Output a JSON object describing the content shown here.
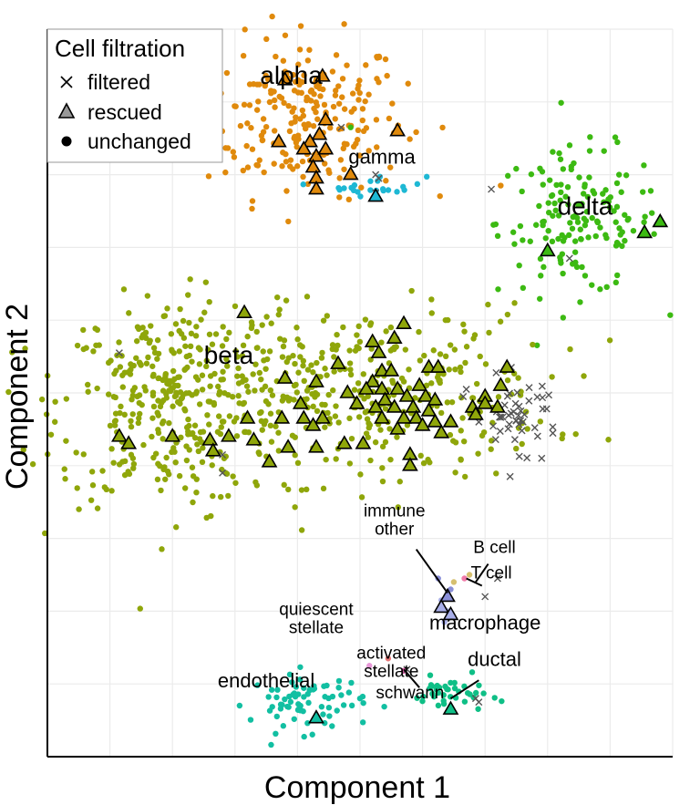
{
  "chart_data": {
    "type": "scatter",
    "xlabel": "Component 1",
    "ylabel": "Component 2",
    "xlim": [
      0,
      100
    ],
    "ylim": [
      0,
      100
    ],
    "grid": true,
    "legend_placement": "top-left",
    "legend": {
      "title": "Cell filtration",
      "entries": [
        {
          "label": "filtered",
          "shape": "cross"
        },
        {
          "label": "rescued",
          "shape": "triangle"
        },
        {
          "label": "unchanged",
          "shape": "circle"
        }
      ]
    },
    "colors": {
      "alpha": "#e08a0c",
      "gamma": "#1eb8d4",
      "delta": "#3cba12",
      "beta": "#8fa60a",
      "endothelial": "#12bfa2",
      "ductal": "#0fbf86",
      "immune": "#8a8fd8",
      "macrophage": "#a8aee8",
      "b_cell": "#d6c070",
      "t_cell": "#f07aa8",
      "activated_stellate": "#e87878",
      "quiescent_stellate": "#e898d8",
      "schwann": "#e85ab0",
      "filtered_cross": "#555555"
    },
    "clusters": [
      {
        "id": "alpha",
        "label": "alpha",
        "color_key": "alpha",
        "center": [
          41.0,
          88.0
        ],
        "spread": [
          8.0,
          5.5
        ],
        "n": 230
      },
      {
        "id": "gamma",
        "label": "gamma",
        "color_key": "gamma",
        "center": [
          52.5,
          78.5
        ],
        "spread": [
          4.0,
          0.7
        ],
        "n": 22
      },
      {
        "id": "delta",
        "label": "delta",
        "color_key": "delta",
        "center": [
          85.0,
          73.5
        ],
        "spread": [
          6.5,
          5.0
        ],
        "n": 150
      },
      {
        "id": "beta",
        "label": "beta",
        "color_key": "beta",
        "center": [
          20.0,
          48.5
        ],
        "spread": [
          9.0,
          7.0
        ],
        "n": 330
      },
      {
        "id": "beta2",
        "label": "",
        "color_key": "beta",
        "center": [
          48.0,
          50.0
        ],
        "spread": [
          16.0,
          6.0
        ],
        "n": 380
      },
      {
        "id": "endothelial",
        "label": "endothelial",
        "color_key": "endothelial",
        "center": [
          41.5,
          7.5
        ],
        "spread": [
          4.5,
          2.0
        ],
        "n": 75
      },
      {
        "id": "ductal",
        "label": "ductal",
        "color_key": "ductal",
        "center": [
          64.5,
          8.5
        ],
        "spread": [
          3.0,
          1.2
        ],
        "n": 38
      }
    ],
    "extra_points": [
      {
        "x": 62.5,
        "y": 24.5,
        "color_key": "immune"
      },
      {
        "x": 64.5,
        "y": 23.0,
        "color_key": "immune"
      },
      {
        "x": 63.0,
        "y": 21.5,
        "color_key": "macrophage"
      },
      {
        "x": 64.0,
        "y": 20.0,
        "color_key": "macrophage"
      },
      {
        "x": 63.5,
        "y": 18.5,
        "color_key": "macrophage"
      },
      {
        "x": 65.0,
        "y": 24.0,
        "color_key": "b_cell"
      },
      {
        "x": 67.5,
        "y": 25.0,
        "color_key": "b_cell"
      },
      {
        "x": 66.7,
        "y": 24.5,
        "color_key": "t_cell"
      },
      {
        "x": 51.5,
        "y": 12.5,
        "color_key": "quiescent_stellate"
      },
      {
        "x": 54.5,
        "y": 13.5,
        "color_key": "activated_stellate"
      },
      {
        "x": 57.0,
        "y": 11.8,
        "color_key": "schwann"
      },
      {
        "x": 72.5,
        "y": 78.5,
        "color_key": "alpha"
      },
      {
        "x": 76.0,
        "y": 71.0,
        "color_key": "delta"
      },
      {
        "x": 48.5,
        "y": 86.5,
        "color_key": "delta"
      }
    ],
    "rescued": [
      {
        "x": 44.0,
        "y": 93.5,
        "color_key": "alpha"
      },
      {
        "x": 44.5,
        "y": 87.5,
        "color_key": "alpha"
      },
      {
        "x": 43.5,
        "y": 85.5,
        "color_key": "alpha"
      },
      {
        "x": 42.0,
        "y": 84.5,
        "color_key": "alpha"
      },
      {
        "x": 41.0,
        "y": 83.5,
        "color_key": "alpha"
      },
      {
        "x": 43.0,
        "y": 82.5,
        "color_key": "alpha"
      },
      {
        "x": 44.5,
        "y": 83.5,
        "color_key": "alpha"
      },
      {
        "x": 42.5,
        "y": 81.0,
        "color_key": "alpha"
      },
      {
        "x": 43.0,
        "y": 79.5,
        "color_key": "alpha"
      },
      {
        "x": 43.0,
        "y": 78.0,
        "color_key": "alpha"
      },
      {
        "x": 37.0,
        "y": 84.5,
        "color_key": "alpha"
      },
      {
        "x": 38.0,
        "y": 93.0,
        "color_key": "alpha"
      },
      {
        "x": 48.5,
        "y": 80.0,
        "color_key": "alpha"
      },
      {
        "x": 56.0,
        "y": 86.0,
        "color_key": "alpha"
      },
      {
        "x": 52.5,
        "y": 77.0,
        "color_key": "gamma"
      },
      {
        "x": 98.0,
        "y": 73.5,
        "color_key": "delta"
      },
      {
        "x": 95.5,
        "y": 72.0,
        "color_key": "delta"
      },
      {
        "x": 80.0,
        "y": 69.5,
        "color_key": "delta"
      },
      {
        "x": 31.5,
        "y": 61.0,
        "color_key": "beta"
      },
      {
        "x": 57.0,
        "y": 59.5,
        "color_key": "beta"
      },
      {
        "x": 55.5,
        "y": 57.5,
        "color_key": "beta"
      },
      {
        "x": 52.0,
        "y": 57.0,
        "color_key": "beta"
      },
      {
        "x": 53.0,
        "y": 55.5,
        "color_key": "beta"
      },
      {
        "x": 46.5,
        "y": 54.0,
        "color_key": "beta"
      },
      {
        "x": 53.5,
        "y": 53.0,
        "color_key": "beta"
      },
      {
        "x": 55.0,
        "y": 53.0,
        "color_key": "beta"
      },
      {
        "x": 61.0,
        "y": 53.5,
        "color_key": "beta"
      },
      {
        "x": 62.5,
        "y": 53.5,
        "color_key": "beta"
      },
      {
        "x": 73.5,
        "y": 53.5,
        "color_key": "beta"
      },
      {
        "x": 38.0,
        "y": 52.0,
        "color_key": "beta"
      },
      {
        "x": 43.0,
        "y": 51.5,
        "color_key": "beta"
      },
      {
        "x": 52.0,
        "y": 51.5,
        "color_key": "beta"
      },
      {
        "x": 53.5,
        "y": 50.5,
        "color_key": "beta"
      },
      {
        "x": 56.0,
        "y": 50.5,
        "color_key": "beta"
      },
      {
        "x": 59.5,
        "y": 51.0,
        "color_key": "beta"
      },
      {
        "x": 72.5,
        "y": 51.0,
        "color_key": "beta"
      },
      {
        "x": 48.0,
        "y": 50.0,
        "color_key": "beta"
      },
      {
        "x": 51.0,
        "y": 50.5,
        "color_key": "beta"
      },
      {
        "x": 54.0,
        "y": 49.0,
        "color_key": "beta"
      },
      {
        "x": 57.5,
        "y": 49.5,
        "color_key": "beta"
      },
      {
        "x": 60.5,
        "y": 49.5,
        "color_key": "beta"
      },
      {
        "x": 62.0,
        "y": 49.0,
        "color_key": "beta"
      },
      {
        "x": 70.0,
        "y": 49.5,
        "color_key": "beta"
      },
      {
        "x": 40.5,
        "y": 48.5,
        "color_key": "beta"
      },
      {
        "x": 49.5,
        "y": 48.5,
        "color_key": "beta"
      },
      {
        "x": 52.5,
        "y": 48.0,
        "color_key": "beta"
      },
      {
        "x": 55.5,
        "y": 48.0,
        "color_key": "beta"
      },
      {
        "x": 58.5,
        "y": 48.0,
        "color_key": "beta"
      },
      {
        "x": 61.0,
        "y": 47.5,
        "color_key": "beta"
      },
      {
        "x": 68.0,
        "y": 48.0,
        "color_key": "beta"
      },
      {
        "x": 72.0,
        "y": 48.0,
        "color_key": "beta"
      },
      {
        "x": 32.0,
        "y": 46.5,
        "color_key": "beta"
      },
      {
        "x": 37.5,
        "y": 46.5,
        "color_key": "beta"
      },
      {
        "x": 41.0,
        "y": 46.5,
        "color_key": "beta"
      },
      {
        "x": 44.0,
        "y": 46.5,
        "color_key": "beta"
      },
      {
        "x": 53.5,
        "y": 46.5,
        "color_key": "beta"
      },
      {
        "x": 57.0,
        "y": 46.5,
        "color_key": "beta"
      },
      {
        "x": 59.0,
        "y": 46.5,
        "color_key": "beta"
      },
      {
        "x": 62.0,
        "y": 46.0,
        "color_key": "beta"
      },
      {
        "x": 64.5,
        "y": 46.0,
        "color_key": "beta"
      },
      {
        "x": 42.5,
        "y": 45.5,
        "color_key": "beta"
      },
      {
        "x": 56.0,
        "y": 45.0,
        "color_key": "beta"
      },
      {
        "x": 60.0,
        "y": 45.5,
        "color_key": "beta"
      },
      {
        "x": 63.0,
        "y": 44.5,
        "color_key": "beta"
      },
      {
        "x": 11.5,
        "y": 44.0,
        "color_key": "beta"
      },
      {
        "x": 13.0,
        "y": 43.0,
        "color_key": "beta"
      },
      {
        "x": 20.0,
        "y": 44.0,
        "color_key": "beta"
      },
      {
        "x": 26.0,
        "y": 43.5,
        "color_key": "beta"
      },
      {
        "x": 29.0,
        "y": 44.0,
        "color_key": "beta"
      },
      {
        "x": 33.0,
        "y": 43.5,
        "color_key": "beta"
      },
      {
        "x": 47.5,
        "y": 43.0,
        "color_key": "beta"
      },
      {
        "x": 50.5,
        "y": 43.0,
        "color_key": "beta"
      },
      {
        "x": 26.5,
        "y": 42.0,
        "color_key": "beta"
      },
      {
        "x": 38.5,
        "y": 42.5,
        "color_key": "beta"
      },
      {
        "x": 43.0,
        "y": 42.5,
        "color_key": "beta"
      },
      {
        "x": 58.0,
        "y": 41.5,
        "color_key": "beta"
      },
      {
        "x": 35.5,
        "y": 40.5,
        "color_key": "beta"
      },
      {
        "x": 58.0,
        "y": 40.0,
        "color_key": "beta"
      },
      {
        "x": 70.0,
        "y": 48.5,
        "color_key": "beta"
      },
      {
        "x": 68.5,
        "y": 47.0,
        "color_key": "beta"
      },
      {
        "x": 64.0,
        "y": 22.0,
        "color_key": "immune"
      },
      {
        "x": 63.0,
        "y": 20.5,
        "color_key": "macrophage"
      },
      {
        "x": 64.5,
        "y": 19.5,
        "color_key": "macrophage"
      },
      {
        "x": 43.0,
        "y": 5.3,
        "color_key": "endothelial"
      },
      {
        "x": 64.5,
        "y": 6.5,
        "color_key": "ductal"
      }
    ],
    "filtered": [
      {
        "x": 47.0,
        "y": 86.5
      },
      {
        "x": 52.5,
        "y": 80.0
      },
      {
        "x": 52.5,
        "y": 77.5
      },
      {
        "x": 53.0,
        "y": 79.5
      },
      {
        "x": 71.0,
        "y": 78.0
      },
      {
        "x": 83.5,
        "y": 68.5
      },
      {
        "x": 11.5,
        "y": 55.5
      },
      {
        "x": 28.0,
        "y": 41.5
      },
      {
        "x": 28.0,
        "y": 39.0
      },
      {
        "x": 67.0,
        "y": 50.5
      },
      {
        "x": 66.5,
        "y": 49.5
      },
      {
        "x": 69.0,
        "y": 46.0
      },
      {
        "x": 74.0,
        "y": 38.5
      },
      {
        "x": 68.5,
        "y": 8.0
      },
      {
        "x": 69.0,
        "y": 7.5
      },
      {
        "x": 72.0,
        "y": 24.5
      },
      {
        "x": 70.0,
        "y": 22.0
      },
      {
        "x": 57.5,
        "y": 12.0
      }
    ],
    "filtered_cluster": {
      "center": [
        75.5,
        47.0
      ],
      "spread": [
        3.2,
        2.4
      ],
      "n": 45
    },
    "cluster_labels": [
      {
        "text": "alpha",
        "x": 39.0,
        "y": 92.5,
        "size": "big"
      },
      {
        "text": "gamma",
        "x": 53.5,
        "y": 81.5,
        "size": "mid"
      },
      {
        "text": "delta",
        "x": 86.0,
        "y": 74.5,
        "size": "big"
      },
      {
        "text": "beta",
        "x": 29.0,
        "y": 54.0,
        "size": "big"
      },
      {
        "text": "endothelial",
        "x": 35.0,
        "y": 9.5,
        "size": "mid"
      },
      {
        "text": "ductal",
        "x": 71.5,
        "y": 12.5,
        "size": "mid"
      },
      {
        "text": "schwann",
        "x": 58.0,
        "y": 8.0,
        "size": "small"
      },
      {
        "text": "macrophage",
        "x": 70.0,
        "y": 17.5,
        "size": "mid"
      },
      {
        "text": "B cell",
        "x": 71.5,
        "y": 28.0,
        "size": "small"
      },
      {
        "text": "T cell",
        "x": 71.0,
        "y": 24.5,
        "size": "small"
      }
    ],
    "two_line_labels": [
      {
        "lines": [
          "immune",
          "other"
        ],
        "x": 55.5,
        "y": 33.0
      },
      {
        "lines": [
          "quiescent",
          "stellate"
        ],
        "x": 43.0,
        "y": 19.5
      },
      {
        "lines": [
          "activated",
          "stellate"
        ],
        "x": 55.0,
        "y": 13.5
      }
    ],
    "leader_lines": [
      {
        "x1": 59.0,
        "y1": 28.5,
        "x2": 64.0,
        "y2": 22.5
      },
      {
        "x1": 70.5,
        "y1": 26.5,
        "x2": 68.5,
        "y2": 24.0
      },
      {
        "x1": 69.5,
        "y1": 23.5,
        "x2": 67.0,
        "y2": 24.5
      },
      {
        "x1": 59.5,
        "y1": 9.5,
        "x2": 57.0,
        "y2": 12.0
      },
      {
        "x1": 69.0,
        "y1": 10.5,
        "x2": 64.5,
        "y2": 8.0
      }
    ]
  }
}
